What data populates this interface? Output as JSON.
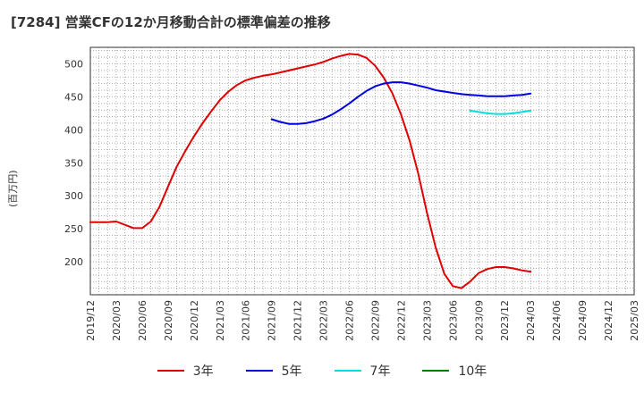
{
  "title": "[7284]  営業CFの12か月移動合計の標準偏差の推移",
  "y_unit": "(百万円)",
  "chart_data": {
    "type": "line",
    "title": "[7284]  営業CFの12か月移動合計の標準偏差の推移",
    "ylabel": "(百万円)",
    "xlabel": "",
    "ylim": [
      150,
      525
    ],
    "yticks": [
      200,
      250,
      300,
      350,
      400,
      450,
      500
    ],
    "xlim": [
      "2019-12",
      "2025-03"
    ],
    "xticks": [
      "2019/12",
      "2020/03",
      "2020/06",
      "2020/09",
      "2020/12",
      "2021/03",
      "2021/06",
      "2021/09",
      "2021/12",
      "2022/03",
      "2022/06",
      "2022/09",
      "2022/12",
      "2023/03",
      "2023/06",
      "2023/09",
      "2023/12",
      "2024/03",
      "2024/06",
      "2024/09",
      "2024/12",
      "2025/03"
    ],
    "grid": true,
    "legend_position": "bottom",
    "series": [
      {
        "name": "3年",
        "color": "#e00000",
        "points": [
          [
            "2019-12",
            260
          ],
          [
            "2020-01",
            260
          ],
          [
            "2020-02",
            260
          ],
          [
            "2020-03",
            261
          ],
          [
            "2020-04",
            256
          ],
          [
            "2020-05",
            251
          ],
          [
            "2020-06",
            251
          ],
          [
            "2020-07",
            261
          ],
          [
            "2020-08",
            283
          ],
          [
            "2020-09",
            314
          ],
          [
            "2020-10",
            344
          ],
          [
            "2020-11",
            368
          ],
          [
            "2020-12",
            390
          ],
          [
            "2021-01",
            410
          ],
          [
            "2021-02",
            428
          ],
          [
            "2021-03",
            445
          ],
          [
            "2021-04",
            458
          ],
          [
            "2021-05",
            468
          ],
          [
            "2021-06",
            475
          ],
          [
            "2021-07",
            479
          ],
          [
            "2021-08",
            482
          ],
          [
            "2021-09",
            484
          ],
          [
            "2021-10",
            487
          ],
          [
            "2021-11",
            490
          ],
          [
            "2021-12",
            493
          ],
          [
            "2022-01",
            496
          ],
          [
            "2022-02",
            499
          ],
          [
            "2022-03",
            503
          ],
          [
            "2022-04",
            508
          ],
          [
            "2022-05",
            512
          ],
          [
            "2022-06",
            515
          ],
          [
            "2022-07",
            514
          ],
          [
            "2022-08",
            509
          ],
          [
            "2022-09",
            497
          ],
          [
            "2022-10",
            479
          ],
          [
            "2022-11",
            455
          ],
          [
            "2022-12",
            423
          ],
          [
            "2023-01",
            383
          ],
          [
            "2023-02",
            333
          ],
          [
            "2023-03",
            274
          ],
          [
            "2023-04",
            222
          ],
          [
            "2023-05",
            182
          ],
          [
            "2023-06",
            163
          ],
          [
            "2023-07",
            160
          ],
          [
            "2023-08",
            170
          ],
          [
            "2023-09",
            183
          ],
          [
            "2023-10",
            189
          ],
          [
            "2023-11",
            192
          ],
          [
            "2023-12",
            192
          ],
          [
            "2024-01",
            190
          ],
          [
            "2024-02",
            187
          ],
          [
            "2024-03",
            185
          ]
        ]
      },
      {
        "name": "5年",
        "color": "#0000e0",
        "points": [
          [
            "2021-09",
            416
          ],
          [
            "2021-10",
            412
          ],
          [
            "2021-11",
            409
          ],
          [
            "2021-12",
            409
          ],
          [
            "2022-01",
            410
          ],
          [
            "2022-02",
            413
          ],
          [
            "2022-03",
            417
          ],
          [
            "2022-04",
            423
          ],
          [
            "2022-05",
            431
          ],
          [
            "2022-06",
            440
          ],
          [
            "2022-07",
            450
          ],
          [
            "2022-08",
            459
          ],
          [
            "2022-09",
            466
          ],
          [
            "2022-10",
            470
          ],
          [
            "2022-11",
            472
          ],
          [
            "2022-12",
            472
          ],
          [
            "2023-01",
            470
          ],
          [
            "2023-02",
            467
          ],
          [
            "2023-03",
            464
          ],
          [
            "2023-04",
            460
          ],
          [
            "2023-05",
            458
          ],
          [
            "2023-06",
            456
          ],
          [
            "2023-07",
            454
          ],
          [
            "2023-08",
            453
          ],
          [
            "2023-09",
            452
          ],
          [
            "2023-10",
            451
          ],
          [
            "2023-11",
            451
          ],
          [
            "2023-12",
            451
          ],
          [
            "2024-01",
            452
          ],
          [
            "2024-02",
            453
          ],
          [
            "2024-03",
            455
          ]
        ]
      },
      {
        "name": "7年",
        "color": "#00e0e0",
        "points": [
          [
            "2023-08",
            429
          ],
          [
            "2023-09",
            427
          ],
          [
            "2023-10",
            425
          ],
          [
            "2023-11",
            424
          ],
          [
            "2023-12",
            424
          ],
          [
            "2024-01",
            425
          ],
          [
            "2024-02",
            427
          ],
          [
            "2024-03",
            429
          ]
        ]
      },
      {
        "name": "10年",
        "color": "#008000",
        "points": []
      }
    ]
  }
}
